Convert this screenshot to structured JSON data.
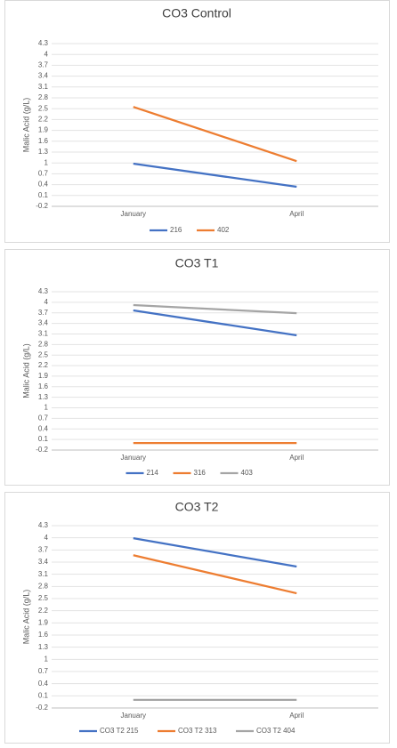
{
  "chart_data": [
    {
      "type": "line",
      "title": "CO3 Control",
      "y_label": "Malic Acid (g/L)",
      "categories": [
        "January",
        "April"
      ],
      "series": [
        {
          "name": "216",
          "color": "#4472c4",
          "values": [
            0.98,
            0.34
          ]
        },
        {
          "name": "402",
          "color": "#ed7d31",
          "values": [
            2.55,
            1.05
          ]
        }
      ],
      "ylim": [
        -0.2,
        4.3
      ],
      "yticks": [
        -0.2,
        0.1,
        0.4,
        0.7,
        1,
        1.3,
        1.6,
        1.9,
        2.2,
        2.5,
        2.8,
        3.1,
        3.4,
        3.7,
        4,
        4.3
      ],
      "grid": true,
      "legend": "bottom"
    },
    {
      "type": "line",
      "title": "CO3 T1",
      "y_label": "Malic Acid (g/L)",
      "categories": [
        "January",
        "April"
      ],
      "series": [
        {
          "name": "214",
          "color": "#4472c4",
          "values": [
            3.77,
            3.06
          ]
        },
        {
          "name": "316",
          "color": "#ed7d31",
          "values": [
            0,
            0
          ]
        },
        {
          "name": "403",
          "color": "#a5a5a5",
          "values": [
            3.92,
            3.69
          ]
        }
      ],
      "ylim": [
        -0.2,
        4.3
      ],
      "yticks": [
        -0.2,
        0.1,
        0.4,
        0.7,
        1,
        1.3,
        1.6,
        1.9,
        2.2,
        2.5,
        2.8,
        3.1,
        3.4,
        3.7,
        4,
        4.3
      ],
      "grid": true,
      "legend": "bottom"
    },
    {
      "type": "line",
      "title": "CO3 T2",
      "y_label": "Malic Acid (g/L)",
      "categories": [
        "January",
        "April"
      ],
      "series": [
        {
          "name": "CO3 T2 215",
          "color": "#4472c4",
          "values": [
            3.99,
            3.29
          ]
        },
        {
          "name": "CO3 T2 313",
          "color": "#ed7d31",
          "values": [
            3.57,
            2.63
          ]
        },
        {
          "name": "CO3 T2 404",
          "color": "#a5a5a5",
          "values": [
            0,
            0
          ]
        }
      ],
      "ylim": [
        -0.2,
        4.3
      ],
      "yticks": [
        -0.2,
        0.1,
        0.4,
        0.7,
        1,
        1.3,
        1.6,
        1.9,
        2.2,
        2.5,
        2.8,
        3.1,
        3.4,
        3.7,
        4,
        4.3
      ],
      "grid": true,
      "legend": "bottom"
    }
  ]
}
